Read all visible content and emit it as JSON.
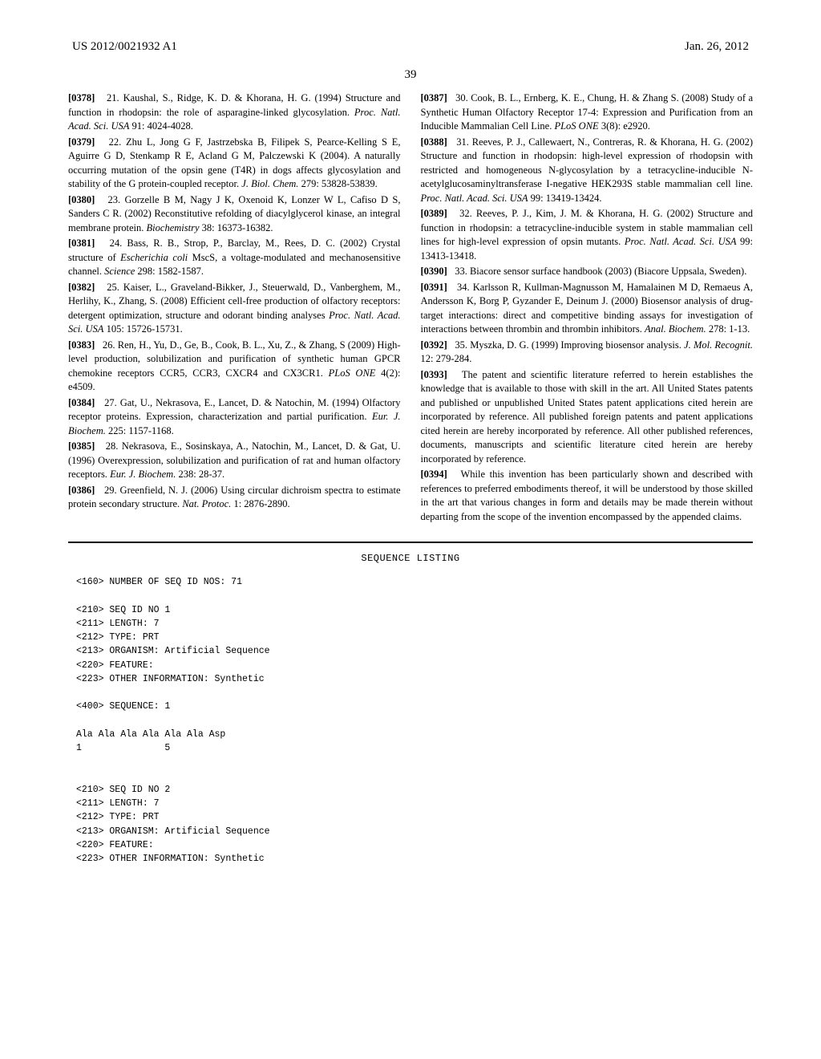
{
  "header": {
    "pub_number": "US 2012/0021932 A1",
    "pub_date": "Jan. 26, 2012"
  },
  "page_number": "39",
  "left_refs": [
    {
      "num": "[0378]",
      "body": "21. Kaushal, S., Ridge, K. D. & Khorana, H. G. (1994) Structure and function in rhodopsin: the role of asparagine-linked glycosylation. ",
      "ital": "Proc. Natl. Acad. Sci. USA",
      "tail": " 91: 4024-4028."
    },
    {
      "num": "[0379]",
      "body": "22. Zhu L, Jong G F, Jastrzebska B, Filipek S, Pearce-Kelling S E, Aguirre G D, Stenkamp R E, Acland G M, Palczewski K (2004). A naturally occurring mutation of the opsin gene (T4R) in dogs affects glycosylation and stability of the G protein-coupled receptor. ",
      "ital": "J. Biol. Chem.",
      "tail": " 279: 53828-53839."
    },
    {
      "num": "[0380]",
      "body": "23. Gorzelle B M, Nagy J K, Oxenoid K, Lonzer W L, Cafiso D S, Sanders C R. (2002) Reconstitutive refolding of diacylglycerol kinase, an integral membrane protein. ",
      "ital": "Biochemistry",
      "tail": " 38: 16373-16382."
    },
    {
      "num": "[0381]",
      "body": "24. Bass, R. B., Strop, P., Barclay, M., Rees, D. C. (2002) Crystal structure of ",
      "ital": "Escherichia coli",
      "tail": " MscS, a voltage-modulated and mechanosensitive channel. ",
      "ital2": "Science",
      "tail2": " 298: 1582-1587."
    },
    {
      "num": "[0382]",
      "body": "25. Kaiser, L., Graveland-Bikker, J., Steuerwald, D., Vanberghem, M., Herlihy, K., Zhang, S. (2008) Efficient cell-free production of olfactory receptors: detergent optimization, structure and odorant binding analyses ",
      "ital": "Proc. Natl. Acad. Sci. USA",
      "tail": " 105: 15726-15731."
    },
    {
      "num": "[0383]",
      "body": "26. Ren, H., Yu, D., Ge, B., Cook, B. L., Xu, Z., & Zhang, S (2009) High-level production, solubilization and purification of synthetic human GPCR chemokine receptors CCR5, CCR3, CXCR4 and CX3CR1. ",
      "ital": "PLoS ONE",
      "tail": " 4(2): e4509."
    },
    {
      "num": "[0384]",
      "body": "27. Gat, U., Nekrasova, E., Lancet, D. & Natochin, M. (1994) Olfactory receptor proteins. Expression, characterization and partial purification. ",
      "ital": "Eur. J. Biochem.",
      "tail": " 225: 1157-1168."
    },
    {
      "num": "[0385]",
      "body": "28. Nekrasova, E., Sosinskaya, A., Natochin, M., Lancet, D. & Gat, U. (1996) Overexpression, solubilization and purification of rat and human olfactory receptors. ",
      "ital": "Eur. J. Biochem.",
      "tail": " 238: 28-37."
    },
    {
      "num": "[0386]",
      "body": "29. Greenfield, N. J. (2006) Using circular dichroism spectra to estimate protein secondary structure. ",
      "ital": "Nat. Protoc.",
      "tail": " 1: 2876-2890."
    }
  ],
  "right_refs": [
    {
      "num": "[0387]",
      "body": "30. Cook, B. L., Ernberg, K. E., Chung, H. & Zhang S. (2008) Study of a Synthetic Human Olfactory Receptor 17-4: Expression and Purification from an Inducible Mammalian Cell Line. ",
      "ital": "PLoS ONE",
      "tail": " 3(8): e2920."
    },
    {
      "num": "[0388]",
      "body": "31. Reeves, P. J., Callewaert, N., Contreras, R. & Khorana, H. G. (2002) Structure and function in rhodopsin: high-level expression of rhodopsin with restricted and homogeneous N-glycosylation by a tetracycline-inducible N-acetylglucosaminyltransferase I-negative HEK293S stable mammalian cell line. ",
      "ital": "Proc. Natl. Acad. Sci. USA",
      "tail": " 99: 13419-13424."
    },
    {
      "num": "[0389]",
      "body": "32. Reeves, P. J., Kim, J. M. & Khorana, H. G. (2002) Structure and function in rhodopsin: a tetracycline-inducible system in stable mammalian cell lines for high-level expression of opsin mutants. ",
      "ital": "Proc. Natl. Acad. Sci. USA",
      "tail": " 99: 13413-13418."
    },
    {
      "num": "[0390]",
      "body": "33. Biacore sensor surface handbook (2003) (Biacore Uppsala, Sweden).",
      "ital": "",
      "tail": ""
    },
    {
      "num": "[0391]",
      "body": "34. Karlsson R, Kullman-Magnusson M, Hamalainen M D, Remaeus A, Andersson K, Borg P, Gyzander E, Deinum J. (2000) Biosensor analysis of drug-target interactions: direct and competitive binding assays for investigation of interactions between thrombin and thrombin inhibitors. ",
      "ital": "Anal. Biochem.",
      "tail": " 278: 1-13."
    },
    {
      "num": "[0392]",
      "body": "35. Myszka, D. G. (1999) Improving biosensor analysis. ",
      "ital": "J. Mol. Recognit.",
      "tail": " 12: 279-284."
    }
  ],
  "para_393": {
    "num": "[0393]",
    "text": "The patent and scientific literature referred to herein establishes the knowledge that is available to those with skill in the art. All United States patents and published or unpublished United States patent applications cited herein are incorporated by reference. All published foreign patents and patent applications cited herein are hereby incorporated by reference. All other published references, documents, manuscripts and scientific literature cited herein are hereby incorporated by reference."
  },
  "para_394": {
    "num": "[0394]",
    "text": "While this invention has been particularly shown and described with references to preferred embodiments thereof, it will be understood by those skilled in the art that various changes in form and details may be made therein without departing from the scope of the invention encompassed by the appended claims."
  },
  "seq": {
    "heading": "SEQUENCE LISTING",
    "body": "<160> NUMBER OF SEQ ID NOS: 71\n\n<210> SEQ ID NO 1\n<211> LENGTH: 7\n<212> TYPE: PRT\n<213> ORGANISM: Artificial Sequence\n<220> FEATURE:\n<223> OTHER INFORMATION: Synthetic\n\n<400> SEQUENCE: 1\n\nAla Ala Ala Ala Ala Ala Asp\n1               5\n\n\n<210> SEQ ID NO 2\n<211> LENGTH: 7\n<212> TYPE: PRT\n<213> ORGANISM: Artificial Sequence\n<220> FEATURE:\n<223> OTHER INFORMATION: Synthetic"
  }
}
